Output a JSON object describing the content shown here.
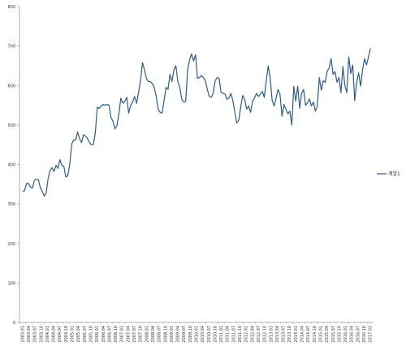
{
  "chart_data": {
    "type": "line",
    "title": "",
    "xlabel": "",
    "ylabel": "",
    "ylim": [
      0,
      800
    ],
    "yticks": [
      0,
      100,
      200,
      300,
      400,
      500,
      600,
      700,
      800
    ],
    "grid": false,
    "legend_position": "right",
    "series_color": "#2e5a8a",
    "x_tick_labels": [
      "2003.01",
      "2003.04",
      "2003.07",
      "2003.10",
      "2004.01",
      "2004.04",
      "2004.07",
      "2004.10",
      "2005.01",
      "2005.04",
      "2005.07",
      "2005.10",
      "2006.01",
      "2006.04",
      "2006.07",
      "2006.10",
      "2007.01",
      "2007.04",
      "2007.07",
      "2007.10",
      "2008.01",
      "2008.04",
      "2008.07",
      "2008.10",
      "2009.01",
      "2009.04",
      "2009.07",
      "2009.10",
      "2010.01",
      "2010.04",
      "2010.07",
      "2010.10",
      "2011.01",
      "2011.04",
      "2011.07",
      "2011.10",
      "2012.01",
      "2012.04",
      "2012.07",
      "2012.10",
      "2013.01",
      "2013.04",
      "2013.07",
      "2013.10",
      "2014.01",
      "2014.04",
      "2014.07",
      "2014.10",
      "2015.01",
      "2015.04",
      "2015.07",
      "2015.10",
      "2016.01",
      "2016.04",
      "2016.07",
      "2016.10",
      "2017.01"
    ],
    "series": [
      {
        "name": "계열1",
        "values": [
          332,
          333,
          352,
          352,
          343,
          340,
          360,
          362,
          362,
          342,
          332,
          320,
          328,
          365,
          385,
          392,
          382,
          398,
          390,
          412,
          398,
          395,
          368,
          372,
          400,
          452,
          462,
          462,
          482,
          465,
          455,
          475,
          472,
          466,
          456,
          450,
          450,
          480,
          545,
          542,
          548,
          552,
          550,
          552,
          550,
          518,
          510,
          490,
          498,
          528,
          568,
          555,
          560,
          570,
          530,
          550,
          558,
          572,
          555,
          582,
          612,
          658,
          640,
          618,
          610,
          610,
          605,
          595,
          572,
          540,
          532,
          530,
          562,
          595,
          590,
          628,
          610,
          640,
          650,
          610,
          595,
          565,
          558,
          560,
          640,
          665,
          680,
          662,
          678,
          618,
          620,
          625,
          620,
          612,
          590,
          572,
          570,
          580,
          612,
          620,
          618,
          582,
          580,
          578,
          565,
          568,
          580,
          562,
          532,
          505,
          512,
          545,
          575,
          565,
          540,
          548,
          532,
          560,
          568,
          580,
          572,
          578,
          585,
          570,
          612,
          650,
          618,
          562,
          548,
          568,
          590,
          578,
          522,
          552,
          540,
          528,
          535,
          500,
          598,
          560,
          598,
          542,
          580,
          590,
          550,
          556,
          566,
          548,
          558,
          535,
          548,
          620,
          588,
          612,
          608,
          636,
          644,
          668,
          628,
          635,
          608,
          620,
          582,
          648,
          600,
          582,
          672,
          630,
          652,
          562,
          608,
          632,
          598,
          640,
          668,
          652,
          672,
          694
        ]
      }
    ]
  }
}
